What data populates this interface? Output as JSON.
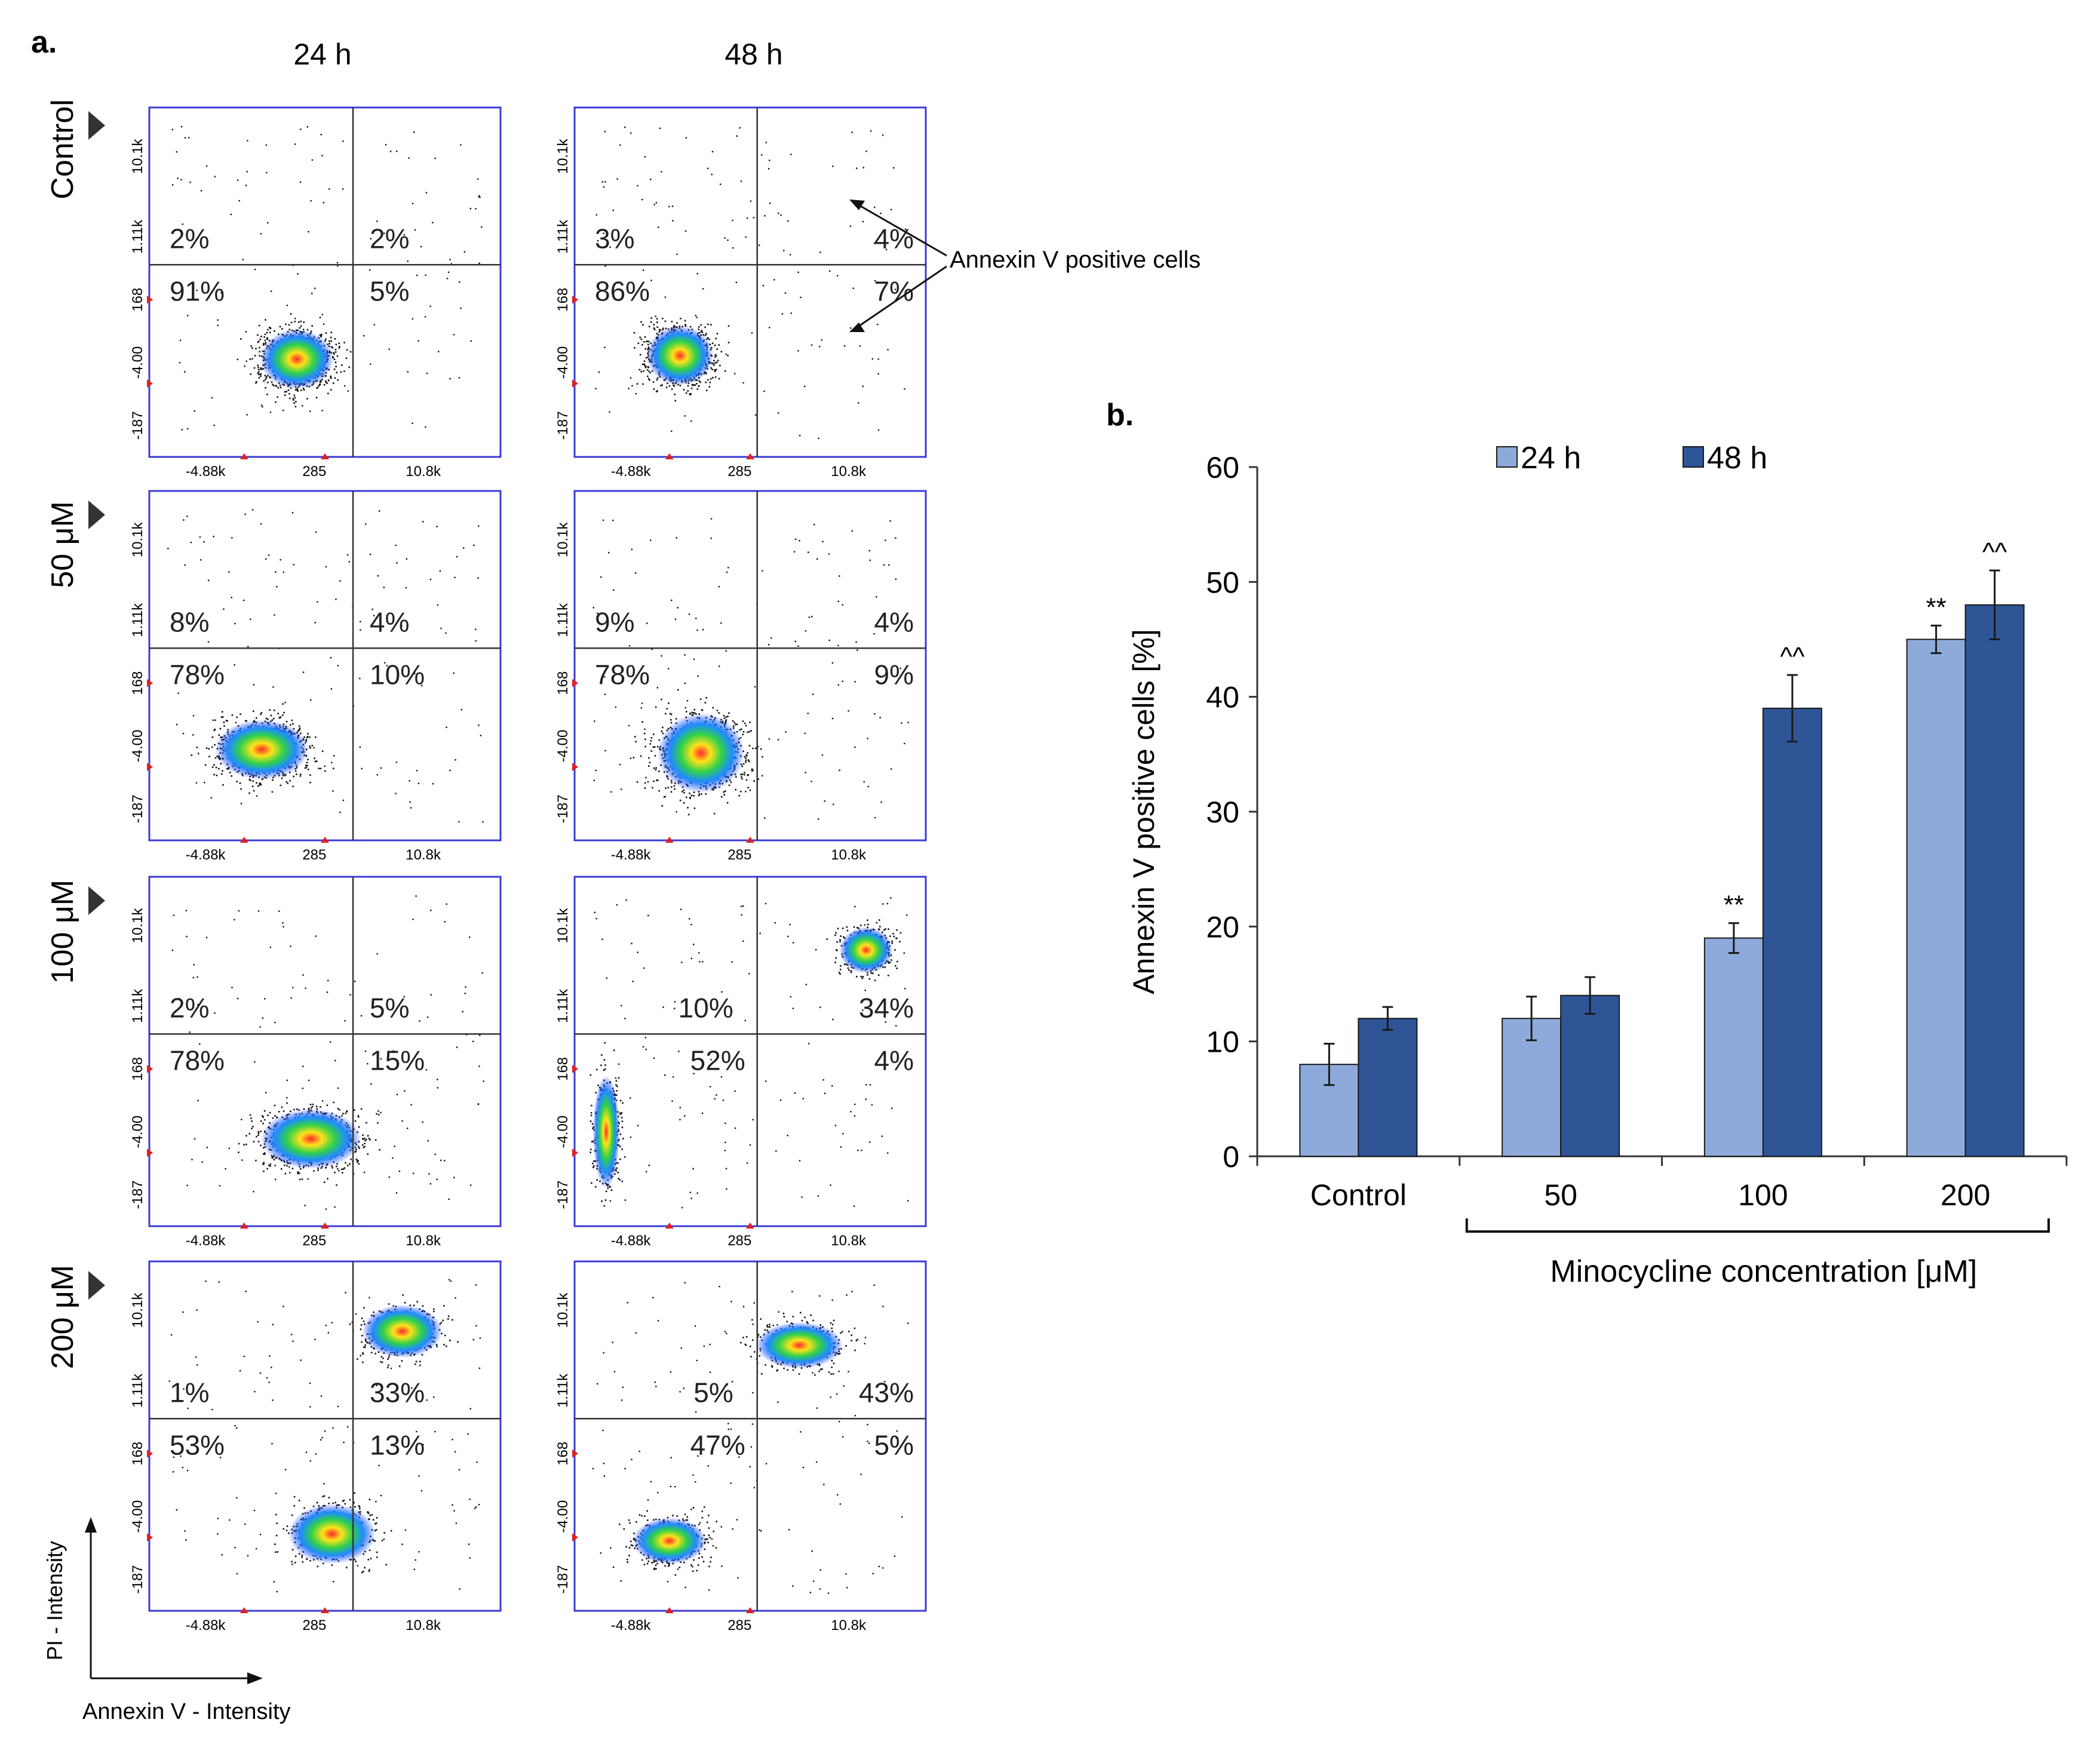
{
  "panel_a": {
    "label": "a.",
    "columns": [
      "24 h",
      "48 h"
    ],
    "rows": [
      "Control",
      "50 μM",
      "100 μM",
      "200 μM"
    ],
    "x_ticks": [
      "-4.88k",
      "285",
      "10.8k"
    ],
    "y_ticks": [
      "10.1k",
      "1.11k",
      "168",
      "-4.00",
      "-187"
    ],
    "x_axis_label": "Annexin V - Intensity",
    "y_axis_label": "PI - Intensity",
    "annotation": "Annexin V positive cells",
    "colors": {
      "frame": "#3b3bd6",
      "dot": "#111111",
      "marker": "#e02020"
    },
    "plots": [
      {
        "row": 0,
        "col": 0,
        "q": [
          "2%",
          "2%",
          "91%",
          "5%"
        ]
      },
      {
        "row": 0,
        "col": 1,
        "q": [
          "3%",
          "4%",
          "86%",
          "7%"
        ]
      },
      {
        "row": 1,
        "col": 0,
        "q": [
          "8%",
          "4%",
          "78%",
          "10%"
        ]
      },
      {
        "row": 1,
        "col": 1,
        "q": [
          "9%",
          "4%",
          "78%",
          "9%"
        ]
      },
      {
        "row": 2,
        "col": 0,
        "q": [
          "2%",
          "5%",
          "78%",
          "15%"
        ]
      },
      {
        "row": 2,
        "col": 1,
        "q": [
          "10%",
          "34%",
          "52%",
          "4%"
        ]
      },
      {
        "row": 3,
        "col": 0,
        "q": [
          "1%",
          "33%",
          "53%",
          "13%"
        ]
      },
      {
        "row": 3,
        "col": 1,
        "q": [
          "5%",
          "43%",
          "47%",
          "5%"
        ]
      }
    ]
  },
  "chart_data": {
    "panel_label": "b.",
    "type": "bar",
    "categories": [
      "Control",
      "50",
      "100",
      "200"
    ],
    "series": [
      {
        "name": "24 h",
        "color": "#8eaadb",
        "values": [
          8,
          12,
          19,
          45
        ],
        "errors": [
          1.8,
          1.9,
          1.3,
          1.2
        ],
        "annotations": [
          "",
          "",
          "**",
          "**"
        ]
      },
      {
        "name": "48 h",
        "color": "#2f5597",
        "values": [
          12,
          14,
          39,
          48
        ],
        "errors": [
          1.0,
          1.6,
          2.9,
          3.0
        ],
        "annotations": [
          "",
          "",
          "^^",
          "^^"
        ]
      }
    ],
    "ylabel": "Annexin V positive cells [%]",
    "xlabel": "Minocycline concentration [μM]",
    "ylim": [
      0,
      60
    ],
    "yticks": [
      0,
      10,
      20,
      30,
      40,
      50,
      60
    ],
    "legend_position": "top"
  }
}
